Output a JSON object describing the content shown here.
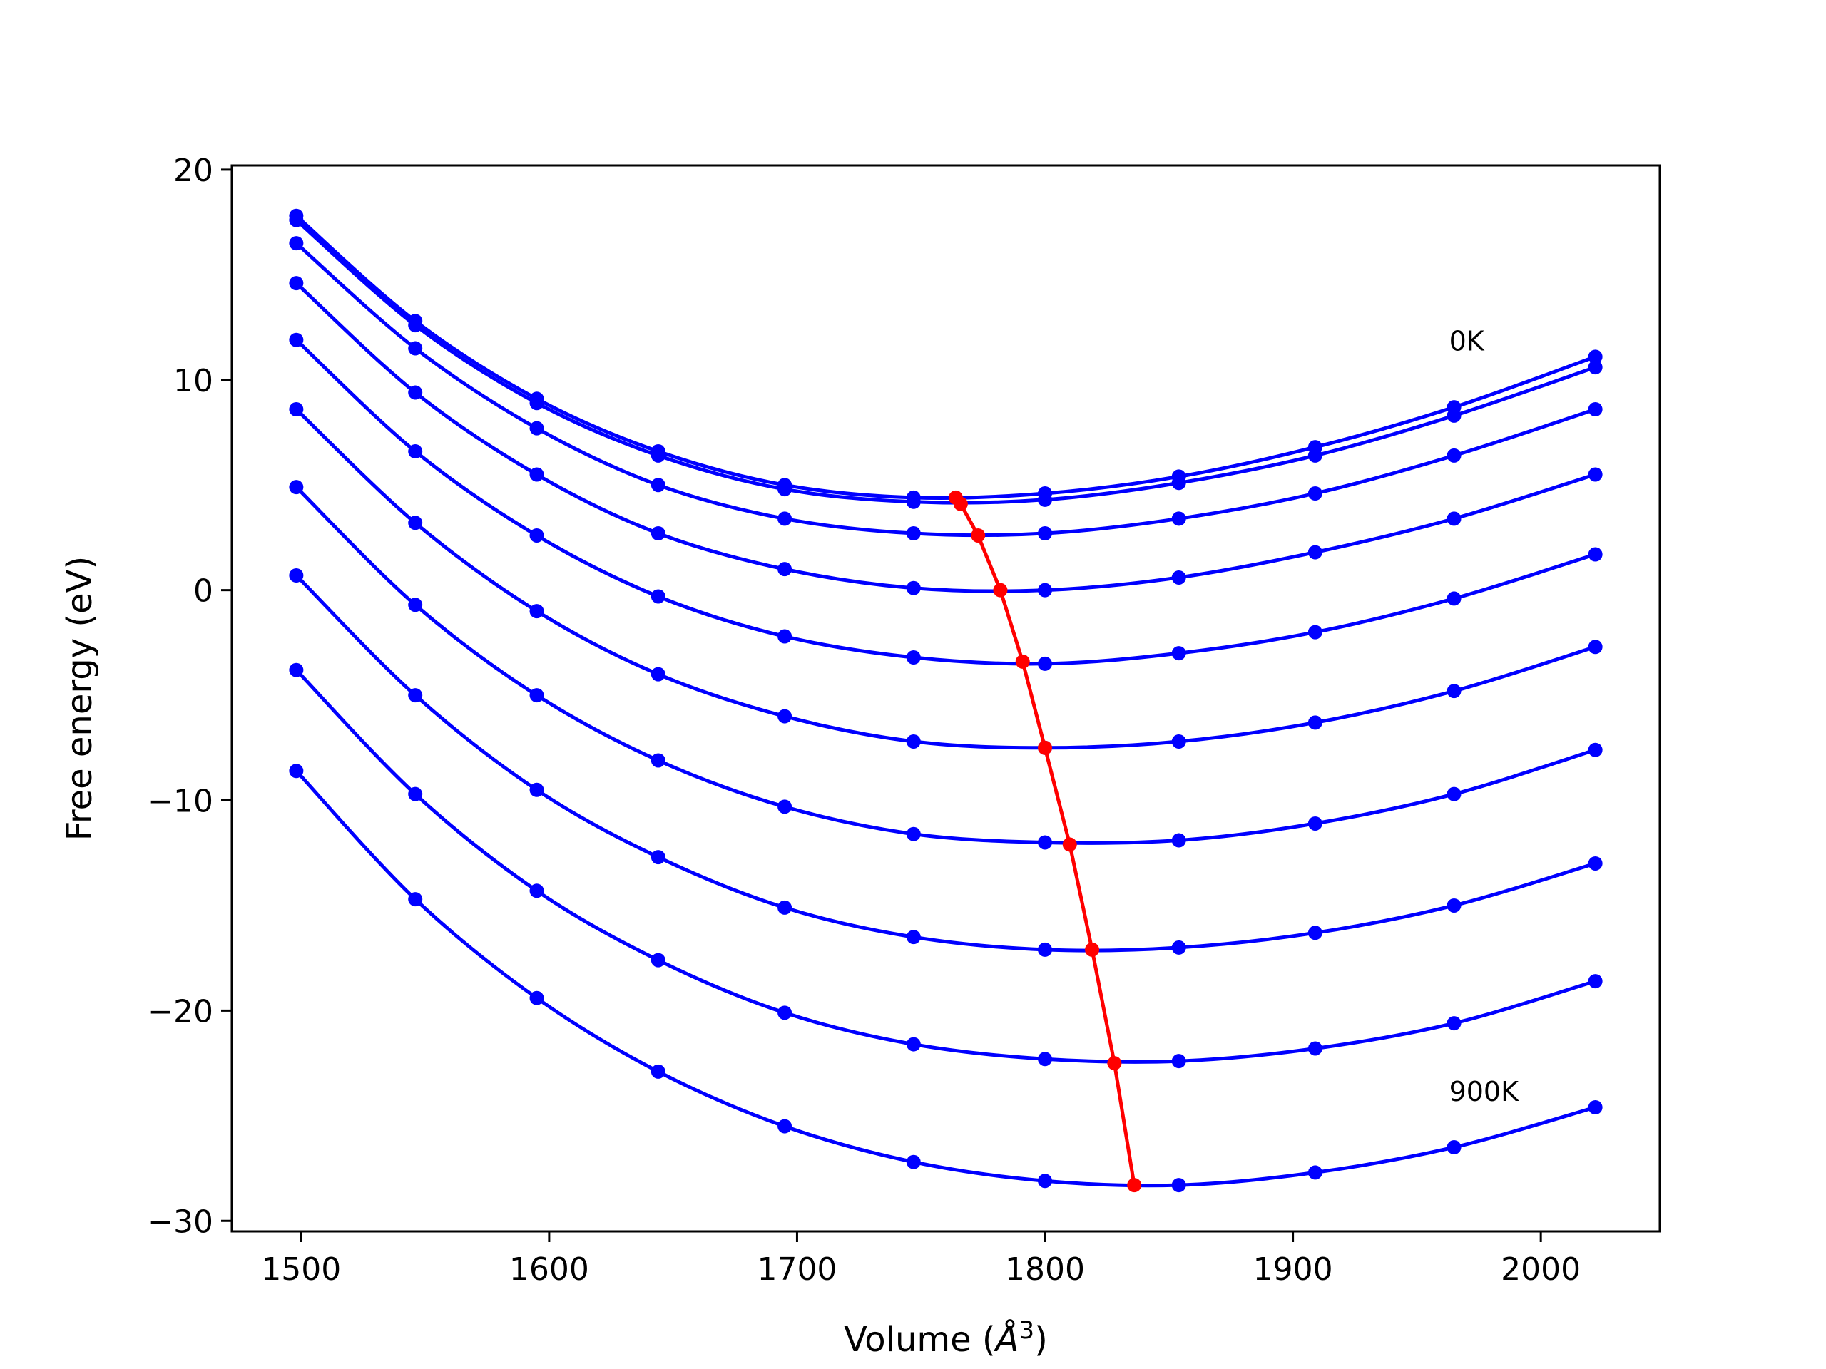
{
  "chart_data": {
    "type": "line",
    "title": "",
    "xlabel": "Volume (",
    "xlabel_unit": "Å",
    "xlabel_exp": "3",
    "xlabel_close": ")",
    "ylabel": "Free energy (eV)",
    "xlim": [
      1472,
      2048
    ],
    "ylim": [
      -30.5,
      20.2
    ],
    "xticks": [
      1500,
      1600,
      1700,
      1800,
      1900,
      2000
    ],
    "xtick_labels": [
      "1500",
      "1600",
      "1700",
      "1800",
      "1900",
      "2000"
    ],
    "yticks": [
      20,
      10,
      0,
      -10,
      -20,
      -30
    ],
    "ytick_labels": [
      "20",
      "10",
      "0",
      "−10",
      "−20",
      "−30"
    ],
    "grid": false,
    "legend": "none",
    "colors": {
      "curves": "#0000ff",
      "minima": "#ff0000",
      "axes": "#000000"
    },
    "x": [
      1498,
      1546,
      1595,
      1644,
      1695,
      1747,
      1800,
      1854,
      1909,
      1965,
      2022
    ],
    "series": [
      {
        "name": "0K",
        "values": [
          17.8,
          12.8,
          9.1,
          6.6,
          5.0,
          4.4,
          4.6,
          5.4,
          6.8,
          8.7,
          11.1
        ]
      },
      {
        "values": [
          17.6,
          12.6,
          8.9,
          6.4,
          4.8,
          4.2,
          4.3,
          5.1,
          6.4,
          8.3,
          10.6
        ]
      },
      {
        "values": [
          16.5,
          11.5,
          7.7,
          5.0,
          3.4,
          2.7,
          2.7,
          3.4,
          4.6,
          6.4,
          8.6
        ]
      },
      {
        "values": [
          14.6,
          9.4,
          5.5,
          2.7,
          1.0,
          0.1,
          0.0,
          0.6,
          1.8,
          3.4,
          5.5
        ]
      },
      {
        "values": [
          11.9,
          6.6,
          2.6,
          -0.3,
          -2.2,
          -3.2,
          -3.5,
          -3.0,
          -2.0,
          -0.4,
          1.7
        ]
      },
      {
        "values": [
          8.6,
          3.2,
          -1.0,
          -4.0,
          -6.0,
          -7.2,
          -7.5,
          -7.2,
          -6.3,
          -4.8,
          -2.7
        ]
      },
      {
        "values": [
          4.9,
          -0.7,
          -5.0,
          -8.1,
          -10.3,
          -11.6,
          -12.0,
          -11.9,
          -11.1,
          -9.7,
          -7.6
        ]
      },
      {
        "values": [
          0.7,
          -5.0,
          -9.5,
          -12.7,
          -15.1,
          -16.5,
          -17.1,
          -17.0,
          -16.3,
          -15.0,
          -13.0
        ]
      },
      {
        "values": [
          -3.8,
          -9.7,
          -14.3,
          -17.6,
          -20.1,
          -21.6,
          -22.3,
          -22.4,
          -21.8,
          -20.6,
          -18.6
        ]
      },
      {
        "name": "900K",
        "values": [
          -8.6,
          -14.7,
          -19.4,
          -22.9,
          -25.5,
          -27.2,
          -28.1,
          -28.3,
          -27.7,
          -26.5,
          -24.6
        ]
      }
    ],
    "minima": {
      "x": [
        1764,
        1766,
        1773,
        1782,
        1791,
        1800,
        1810,
        1819,
        1828,
        1836
      ],
      "y": [
        4.4,
        4.1,
        2.6,
        0.0,
        -3.4,
        -7.5,
        -12.1,
        -17.1,
        -22.5,
        -28.3
      ]
    },
    "annotations": [
      {
        "text": "0K",
        "x": 1963,
        "y": 11.4
      },
      {
        "text": "900K",
        "x": 1963,
        "y": -24.3
      }
    ]
  }
}
